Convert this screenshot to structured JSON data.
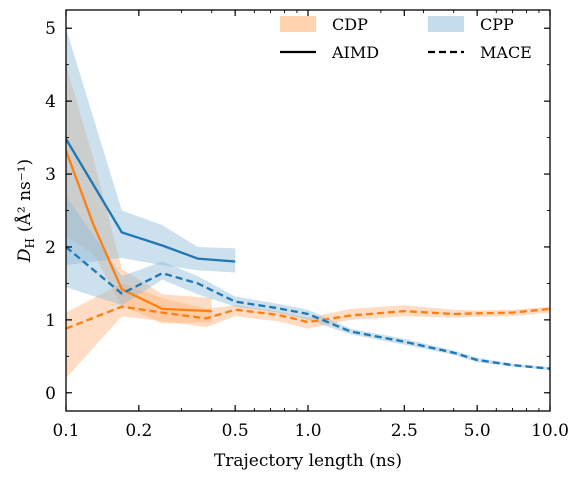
{
  "chart_data": {
    "type": "line",
    "xlabel": "Trajectory length (ns)",
    "ylabel": "D",
    "ylabel_sub": "H",
    "ylabel_units": "(Å² ns⁻¹)",
    "x_scale": "log",
    "xlim": [
      0.1,
      10.0
    ],
    "ylim": [
      -0.25,
      5.25
    ],
    "x_ticks": [
      0.1,
      0.2,
      0.5,
      1.0,
      2.5,
      5.0,
      10.0
    ],
    "x_tick_labels": [
      "0.1",
      "0.2",
      "0.5",
      "1.0",
      "2.5",
      "5.0",
      "10.0"
    ],
    "y_ticks": [
      0,
      1,
      2,
      3,
      4,
      5
    ],
    "y_tick_labels": [
      "0",
      "1",
      "2",
      "3",
      "4",
      "5"
    ],
    "grid": false,
    "legend": {
      "placement": "top-right",
      "entries": [
        {
          "label": "CDP",
          "kind": "band",
          "color": "#ffd3ae"
        },
        {
          "label": "CPP",
          "kind": "band",
          "color": "#c5dced"
        },
        {
          "label": "AIMD",
          "kind": "solid-line",
          "color": "#000000"
        },
        {
          "label": "MACE",
          "kind": "dashed-line",
          "color": "#000000"
        }
      ]
    },
    "colors": {
      "cdp": "#ff7f0e",
      "cpp": "#1f77b4",
      "cdp_band": "#ffb27a",
      "cpp_band": "#8fbad9"
    },
    "series": [
      {
        "name": "CDP",
        "method": "AIMD",
        "line_style": "solid",
        "color": "#ff7f0e",
        "x": [
          0.1,
          0.13,
          0.17,
          0.25,
          0.4
        ],
        "y": [
          3.32,
          2.3,
          1.42,
          1.15,
          1.12
        ],
        "lower": [
          2.15,
          1.9,
          1.2,
          0.95,
          0.97
        ],
        "upper": [
          4.5,
          3.2,
          1.7,
          1.35,
          1.3
        ]
      },
      {
        "name": "CPP",
        "method": "AIMD",
        "line_style": "solid",
        "color": "#1f77b4",
        "x": [
          0.1,
          0.17,
          0.25,
          0.35,
          0.5
        ],
        "y": [
          3.48,
          2.2,
          2.02,
          1.84,
          1.8
        ],
        "lower": [
          1.75,
          1.85,
          1.75,
          1.68,
          1.65
        ],
        "upper": [
          5.0,
          2.5,
          2.3,
          2.0,
          1.98
        ]
      },
      {
        "name": "CDP",
        "method": "MACE",
        "line_style": "dashed",
        "color": "#ff7f0e",
        "x": [
          0.1,
          0.17,
          0.25,
          0.38,
          0.5,
          0.75,
          1.0,
          1.5,
          2.5,
          4.0,
          5.0,
          7.0,
          10.0
        ],
        "y": [
          0.88,
          1.18,
          1.1,
          1.02,
          1.14,
          1.07,
          0.97,
          1.06,
          1.12,
          1.08,
          1.09,
          1.1,
          1.15
        ],
        "lower": [
          0.2,
          1.05,
          0.98,
          0.9,
          1.05,
          0.98,
          0.88,
          1.0,
          1.05,
          1.03,
          1.04,
          1.05,
          1.1
        ],
        "upper": [
          1.1,
          1.5,
          1.3,
          1.15,
          1.2,
          1.12,
          1.03,
          1.15,
          1.2,
          1.14,
          1.13,
          1.14,
          1.18
        ]
      },
      {
        "name": "CPP",
        "method": "MACE",
        "line_style": "dashed",
        "color": "#1f77b4",
        "x": [
          0.1,
          0.17,
          0.25,
          0.35,
          0.5,
          0.75,
          1.0,
          1.5,
          2.5,
          4.0,
          5.0,
          7.0,
          10.0
        ],
        "y": [
          2.0,
          1.36,
          1.64,
          1.5,
          1.25,
          1.16,
          1.08,
          0.84,
          0.7,
          0.55,
          0.45,
          0.38,
          0.33
        ],
        "lower": [
          1.45,
          1.2,
          1.55,
          1.35,
          1.18,
          1.1,
          1.0,
          0.8,
          0.66,
          0.52,
          0.42,
          0.36,
          0.31
        ],
        "upper": [
          2.7,
          1.6,
          1.8,
          1.6,
          1.32,
          1.22,
          1.14,
          0.88,
          0.74,
          0.58,
          0.48,
          0.4,
          0.35
        ]
      }
    ]
  }
}
